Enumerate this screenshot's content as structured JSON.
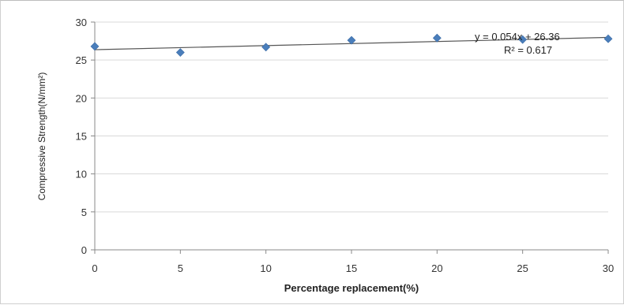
{
  "chart_data": {
    "type": "scatter",
    "xlabel": "Percentage replacement(%)",
    "ylabel": "Compressive Strength(N/mm²)",
    "xlim": [
      0,
      30
    ],
    "ylim": [
      0,
      30
    ],
    "x_ticks": [
      0,
      5,
      10,
      15,
      20,
      25,
      30
    ],
    "y_ticks": [
      0,
      5,
      10,
      15,
      20,
      25,
      30
    ],
    "grid": "horizontal",
    "marker_color": "#4a7ebb",
    "trendline_color": "#555555",
    "series": [
      {
        "x": [
          0,
          5,
          10,
          15,
          20,
          25,
          30
        ],
        "y": [
          26.8,
          26.0,
          26.7,
          27.6,
          27.9,
          27.7,
          27.8
        ]
      }
    ],
    "trendline": {
      "slope": 0.054,
      "intercept": 26.36,
      "equation": "y = 0.054x + 26.36",
      "r_squared": "R² = 0.617"
    }
  }
}
